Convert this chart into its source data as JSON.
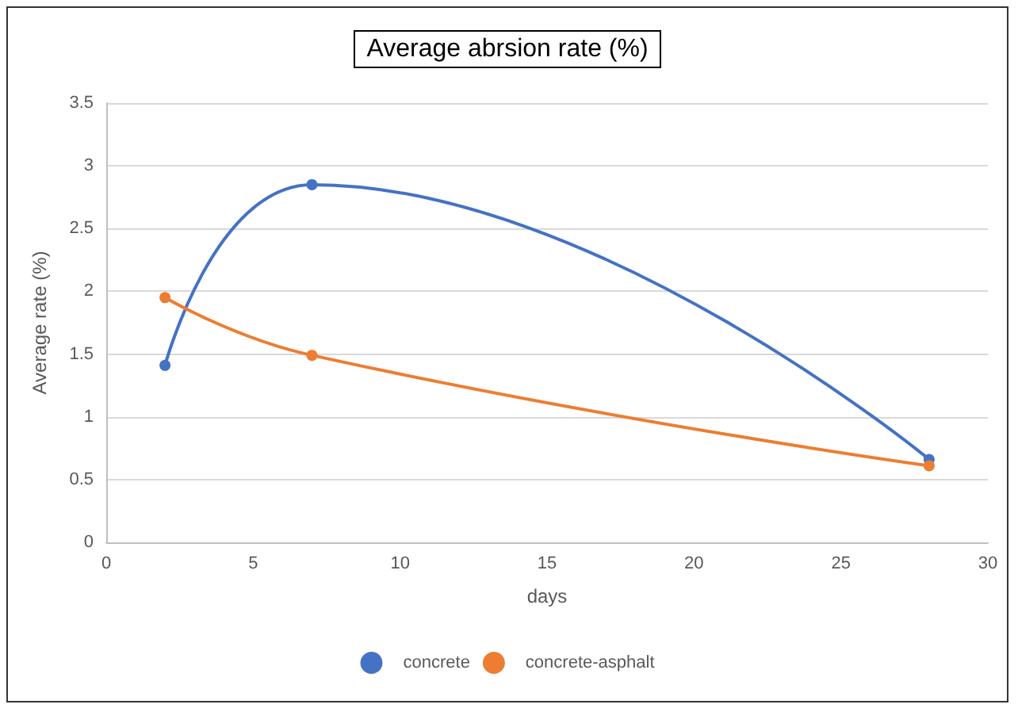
{
  "chart_data": {
    "type": "line",
    "title": "Average abrsion rate (%)",
    "xlabel": "days",
    "ylabel": "Average rate (%)",
    "x": [
      2,
      7,
      28
    ],
    "series": [
      {
        "name": "concrete",
        "color": "#4472c4",
        "values": [
          1.41,
          2.85,
          0.66
        ]
      },
      {
        "name": "concrete-asphalt",
        "color": "#ed7d31",
        "values": [
          1.95,
          1.49,
          0.61
        ]
      }
    ],
    "xlim": [
      0,
      30
    ],
    "xticks": [
      0,
      5,
      10,
      15,
      20,
      25,
      30
    ],
    "ylim": [
      0,
      3.5
    ],
    "yticks": [
      0,
      0.5,
      1,
      1.5,
      2,
      2.5,
      3,
      3.5
    ],
    "grid": "y",
    "legend": "bottom",
    "marker": "circle",
    "line_style": "solid"
  }
}
